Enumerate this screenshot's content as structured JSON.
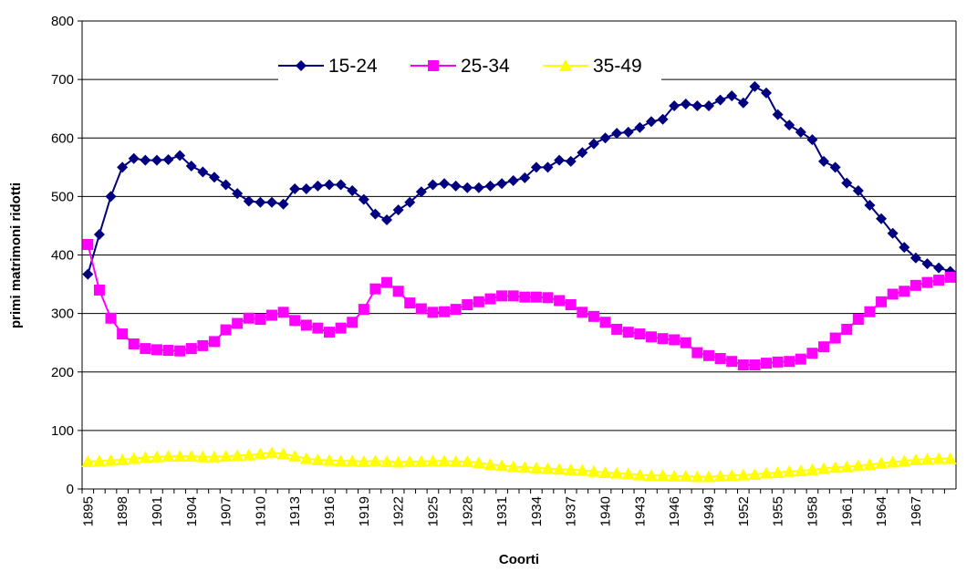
{
  "chart_data": {
    "type": "line",
    "x_label": "Coorti",
    "y_label": "primi matrimoni ridotti",
    "categories": [
      "1895",
      null,
      null,
      "1898",
      null,
      null,
      "1901",
      null,
      null,
      "1904",
      null,
      null,
      "1907",
      null,
      null,
      "1910",
      null,
      null,
      "1913",
      null,
      null,
      "1916",
      null,
      null,
      "1919",
      null,
      null,
      "1922",
      null,
      null,
      "1925",
      null,
      null,
      "1928",
      null,
      null,
      "1931",
      null,
      null,
      "1934",
      null,
      null,
      "1937",
      null,
      null,
      "1940",
      null,
      null,
      "1943",
      null,
      null,
      "1946",
      null,
      null,
      "1949",
      null,
      null,
      "1952",
      null,
      null,
      "1955",
      null,
      null,
      "1958",
      null,
      null,
      "1961",
      null,
      null,
      "1964",
      null,
      null,
      "1967",
      null,
      null,
      null
    ],
    "series": [
      {
        "name": "15-24",
        "color": "#000080",
        "marker": "diamond",
        "values": [
          367,
          435,
          500,
          550,
          565,
          562,
          562,
          563,
          570,
          552,
          542,
          533,
          520,
          505,
          492,
          490,
          490,
          487,
          513,
          513,
          518,
          520,
          520,
          510,
          495,
          470,
          460,
          477,
          490,
          508,
          520,
          522,
          518,
          515,
          515,
          518,
          522,
          527,
          532,
          550,
          550,
          562,
          560,
          575,
          590,
          600,
          608,
          610,
          618,
          628,
          632,
          655,
          658,
          655,
          655,
          665,
          672,
          660,
          688,
          677,
          640,
          622,
          610,
          597,
          560,
          550,
          523,
          510,
          485,
          462,
          437,
          413,
          395,
          385,
          378,
          372
        ]
      },
      {
        "name": "25-34",
        "color": "#ff00ff",
        "marker": "square",
        "values": [
          418,
          340,
          292,
          265,
          248,
          240,
          238,
          237,
          236,
          240,
          245,
          252,
          272,
          283,
          292,
          290,
          297,
          302,
          288,
          280,
          275,
          268,
          275,
          285,
          307,
          342,
          353,
          338,
          318,
          308,
          302,
          303,
          307,
          315,
          320,
          325,
          330,
          330,
          328,
          328,
          327,
          322,
          315,
          302,
          295,
          285,
          273,
          268,
          265,
          260,
          257,
          255,
          250,
          233,
          228,
          223,
          218,
          212,
          212,
          215,
          217,
          218,
          222,
          232,
          243,
          258,
          273,
          290,
          303,
          320,
          333,
          338,
          348,
          353,
          357,
          362
        ]
      },
      {
        "name": "35-49",
        "color": "#ffff00",
        "marker": "triangle",
        "values": [
          47,
          48,
          49,
          50,
          52,
          54,
          55,
          56,
          56,
          56,
          55,
          55,
          56,
          57,
          58,
          60,
          62,
          60,
          56,
          52,
          50,
          49,
          48,
          48,
          47,
          48,
          47,
          46,
          47,
          47,
          48,
          48,
          47,
          47,
          45,
          42,
          40,
          38,
          37,
          36,
          35,
          34,
          33,
          32,
          30,
          28,
          27,
          26,
          24,
          23,
          23,
          22,
          22,
          21,
          21,
          22,
          23,
          24,
          25,
          27,
          28,
          30,
          31,
          33,
          35,
          37,
          38,
          40,
          42,
          44,
          46,
          48,
          50,
          51,
          52,
          52
        ]
      }
    ],
    "ylim": [
      0,
      800
    ],
    "yticks": [
      0,
      100,
      200,
      300,
      400,
      500,
      600,
      700,
      800
    ],
    "grid": true,
    "legend": "top"
  }
}
